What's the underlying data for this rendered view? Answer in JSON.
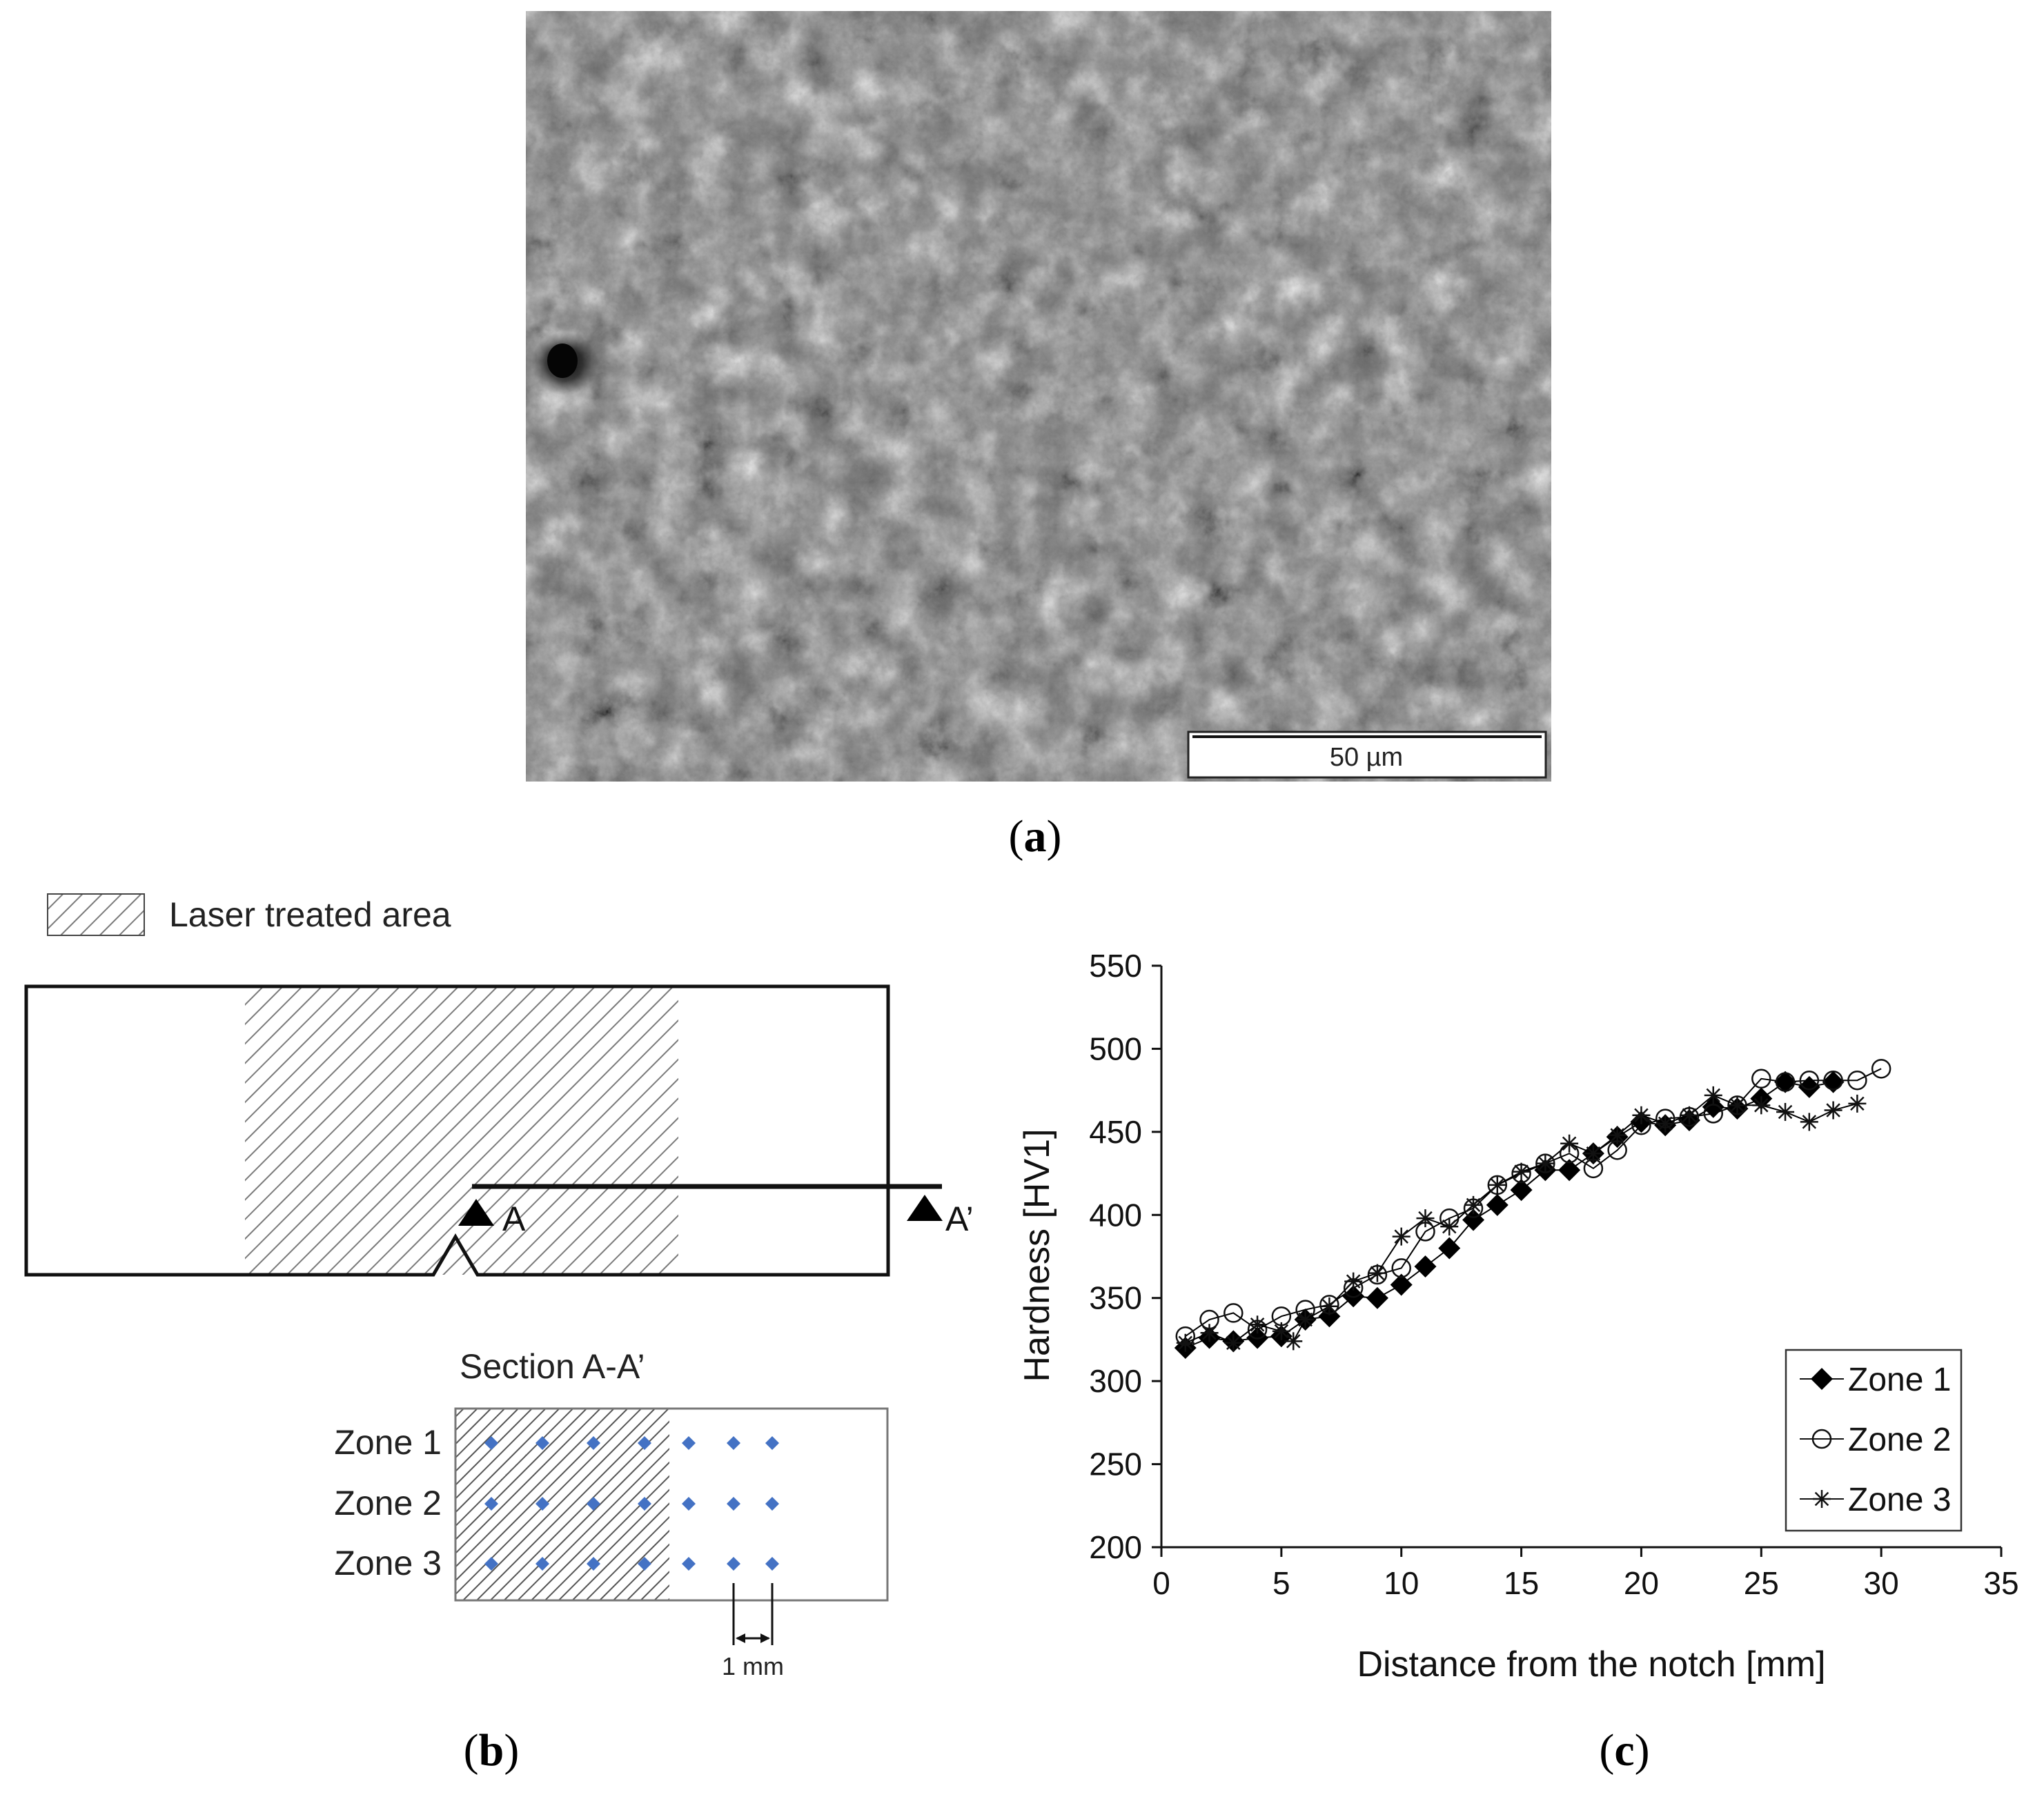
{
  "panel_a": {
    "caption_letter": "a",
    "scale_bar": "50 µm"
  },
  "panel_b": {
    "caption_letter": "b",
    "legend_label": "Laser treated area",
    "marker_a": "A",
    "marker_a_prime": "A’",
    "section_title": "Section A-A’",
    "zones": [
      "Zone 1",
      "Zone 2",
      "Zone 3"
    ],
    "spacing_label": "1 mm",
    "point_color": "#4472c4"
  },
  "panel_c": {
    "caption_letter": "c"
  },
  "chart_data": {
    "type": "scatter",
    "title": "",
    "xlabel": "Distance from the notch [mm]",
    "ylabel": "Hardness [HV1]",
    "xlim": [
      0,
      35
    ],
    "ylim": [
      200,
      550
    ],
    "x_ticks": [
      0,
      5,
      10,
      15,
      20,
      25,
      30,
      35
    ],
    "y_ticks": [
      200,
      250,
      300,
      350,
      400,
      450,
      500,
      550
    ],
    "grid": false,
    "legend_position": "bottom-right",
    "series": [
      {
        "name": "Zone 1",
        "marker": "filled-diamond",
        "color": "#000000",
        "points": [
          [
            1,
            320
          ],
          [
            2,
            326
          ],
          [
            3,
            324
          ],
          [
            4,
            326
          ],
          [
            5,
            327
          ],
          [
            6,
            337
          ],
          [
            7,
            339
          ],
          [
            8,
            351
          ],
          [
            9,
            350
          ],
          [
            10,
            358
          ],
          [
            11,
            369
          ],
          [
            12,
            380
          ],
          [
            13,
            397
          ],
          [
            14,
            406
          ],
          [
            15,
            415
          ],
          [
            16,
            427
          ],
          [
            17,
            427
          ],
          [
            18,
            437
          ],
          [
            19,
            447
          ],
          [
            20,
            456
          ],
          [
            21,
            454
          ],
          [
            22,
            457
          ],
          [
            23,
            465
          ],
          [
            24,
            464
          ],
          [
            25,
            470
          ],
          [
            26,
            480
          ],
          [
            27,
            477
          ],
          [
            28,
            480
          ]
        ]
      },
      {
        "name": "Zone 2",
        "marker": "open-circle",
        "color": "#000000",
        "points": [
          [
            1,
            327
          ],
          [
            2,
            337
          ],
          [
            3,
            341
          ],
          [
            4,
            331
          ],
          [
            5,
            339
          ],
          [
            6,
            343
          ],
          [
            7,
            346
          ],
          [
            8,
            356
          ],
          [
            9,
            364
          ],
          [
            10,
            368
          ],
          [
            11,
            390
          ],
          [
            12,
            398
          ],
          [
            13,
            404
          ],
          [
            14,
            418
          ],
          [
            15,
            425
          ],
          [
            16,
            431
          ],
          [
            17,
            437
          ],
          [
            18,
            428
          ],
          [
            19,
            439
          ],
          [
            20,
            454
          ],
          [
            21,
            458
          ],
          [
            22,
            459
          ],
          [
            23,
            461
          ],
          [
            24,
            466
          ],
          [
            25,
            482
          ],
          [
            26,
            480
          ],
          [
            27,
            481
          ],
          [
            28,
            481
          ],
          [
            29,
            481
          ],
          [
            30,
            488
          ]
        ]
      },
      {
        "name": "Zone 3",
        "marker": "asterisk",
        "color": "#000000",
        "points": [
          [
            1,
            323
          ],
          [
            2,
            329
          ],
          [
            3,
            323
          ],
          [
            4,
            334
          ],
          [
            5,
            330
          ],
          [
            5.5,
            324
          ],
          [
            6,
            337
          ],
          [
            7,
            345
          ],
          [
            8,
            360
          ],
          [
            9,
            365
          ],
          [
            10,
            387
          ],
          [
            11,
            398
          ],
          [
            12,
            393
          ],
          [
            13,
            406
          ],
          [
            14,
            418
          ],
          [
            15,
            426
          ],
          [
            16,
            431
          ],
          [
            17,
            443
          ],
          [
            18,
            437
          ],
          [
            19,
            448
          ],
          [
            20,
            460
          ],
          [
            21,
            455
          ],
          [
            22,
            460
          ],
          [
            23,
            472
          ],
          [
            24,
            466
          ],
          [
            25,
            466
          ],
          [
            26,
            462
          ],
          [
            27,
            456
          ],
          [
            28,
            463
          ],
          [
            29,
            467
          ]
        ]
      }
    ]
  }
}
